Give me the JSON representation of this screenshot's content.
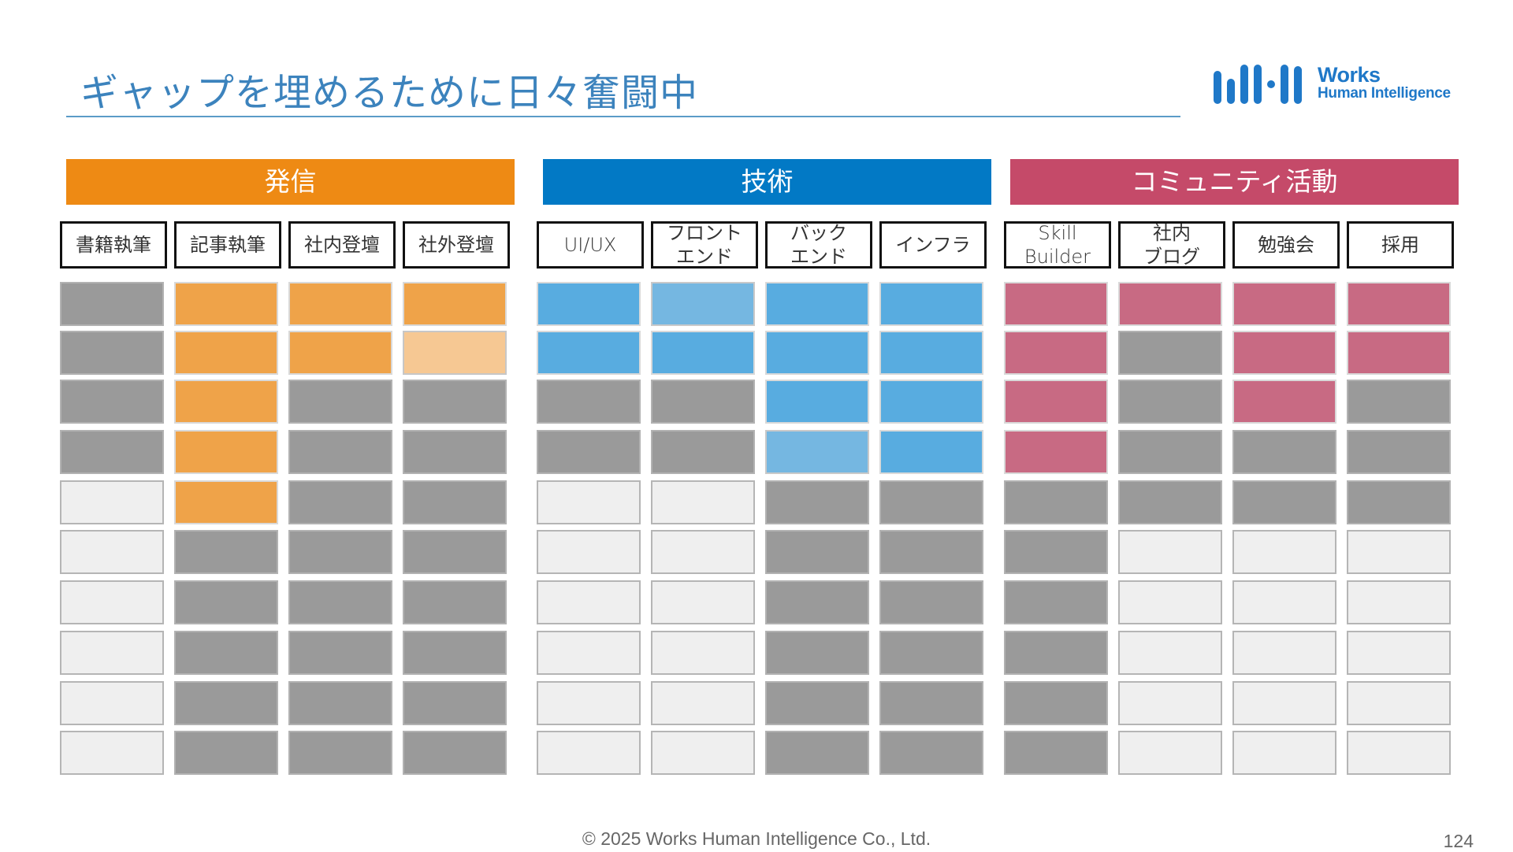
{
  "title": "ギャップを埋めるために日々奮闘中",
  "logo": {
    "line1": "Works",
    "line2": "Human Intelligence"
  },
  "colors": {
    "orange": "#ee8a14",
    "blue": "#0279c5",
    "pink": "#c54a69",
    "gray": "#9a9a9a",
    "empty": "#efefef"
  },
  "groups": [
    {
      "label": "発信",
      "color": "#ee8a14",
      "columns": [
        {
          "label": "書籍執筆",
          "cells": [
            "gray",
            "gray",
            "gray",
            "gray",
            "empty",
            "empty",
            "empty",
            "empty",
            "empty",
            "empty"
          ]
        },
        {
          "label": "記事執筆",
          "cells": [
            "orange",
            "orange",
            "orange",
            "orange",
            "orange",
            "gray",
            "gray",
            "gray",
            "gray",
            "gray"
          ]
        },
        {
          "label": "社内登壇",
          "cells": [
            "orange",
            "orange",
            "gray",
            "gray",
            "gray",
            "gray",
            "gray",
            "gray",
            "gray",
            "gray"
          ]
        },
        {
          "label": "社外登壇",
          "cells": [
            "orange",
            "orange-light",
            "gray",
            "gray",
            "gray",
            "gray",
            "gray",
            "gray",
            "gray",
            "gray"
          ]
        }
      ]
    },
    {
      "label": "技術",
      "color": "#0279c5",
      "columns": [
        {
          "label": "UI/UX",
          "cells": [
            "blue",
            "blue",
            "gray",
            "gray",
            "empty",
            "empty",
            "empty",
            "empty",
            "empty",
            "empty"
          ]
        },
        {
          "label": "フロント\nエンド",
          "cells": [
            "blue-light",
            "blue",
            "gray",
            "gray",
            "empty",
            "empty",
            "empty",
            "empty",
            "empty",
            "empty"
          ]
        },
        {
          "label": "バック\nエンド",
          "cells": [
            "blue",
            "blue",
            "blue",
            "blue-light",
            "gray",
            "gray",
            "gray",
            "gray",
            "gray",
            "gray"
          ]
        },
        {
          "label": "インフラ",
          "cells": [
            "blue",
            "blue",
            "blue",
            "blue",
            "gray",
            "gray",
            "gray",
            "gray",
            "gray",
            "gray"
          ]
        }
      ]
    },
    {
      "label": "コミュニティ活動",
      "color": "#c54a69",
      "columns": [
        {
          "label": "Skill\nBuilder",
          "cells": [
            "pink",
            "pink",
            "pink",
            "pink",
            "gray",
            "gray",
            "gray",
            "gray",
            "gray",
            "gray"
          ]
        },
        {
          "label": "社内\nブログ",
          "cells": [
            "pink",
            "gray",
            "gray",
            "gray",
            "gray",
            "empty",
            "empty",
            "empty",
            "empty",
            "empty"
          ]
        },
        {
          "label": "勉強会",
          "cells": [
            "pink",
            "pink",
            "pink",
            "gray",
            "gray",
            "empty",
            "empty",
            "empty",
            "empty",
            "empty"
          ]
        },
        {
          "label": "採用",
          "cells": [
            "pink",
            "pink",
            "gray",
            "gray",
            "gray",
            "empty",
            "empty",
            "empty",
            "empty",
            "empty"
          ]
        }
      ]
    }
  ],
  "footer": {
    "copyright": "© 2025 Works Human Intelligence Co., Ltd.",
    "page": "124"
  }
}
